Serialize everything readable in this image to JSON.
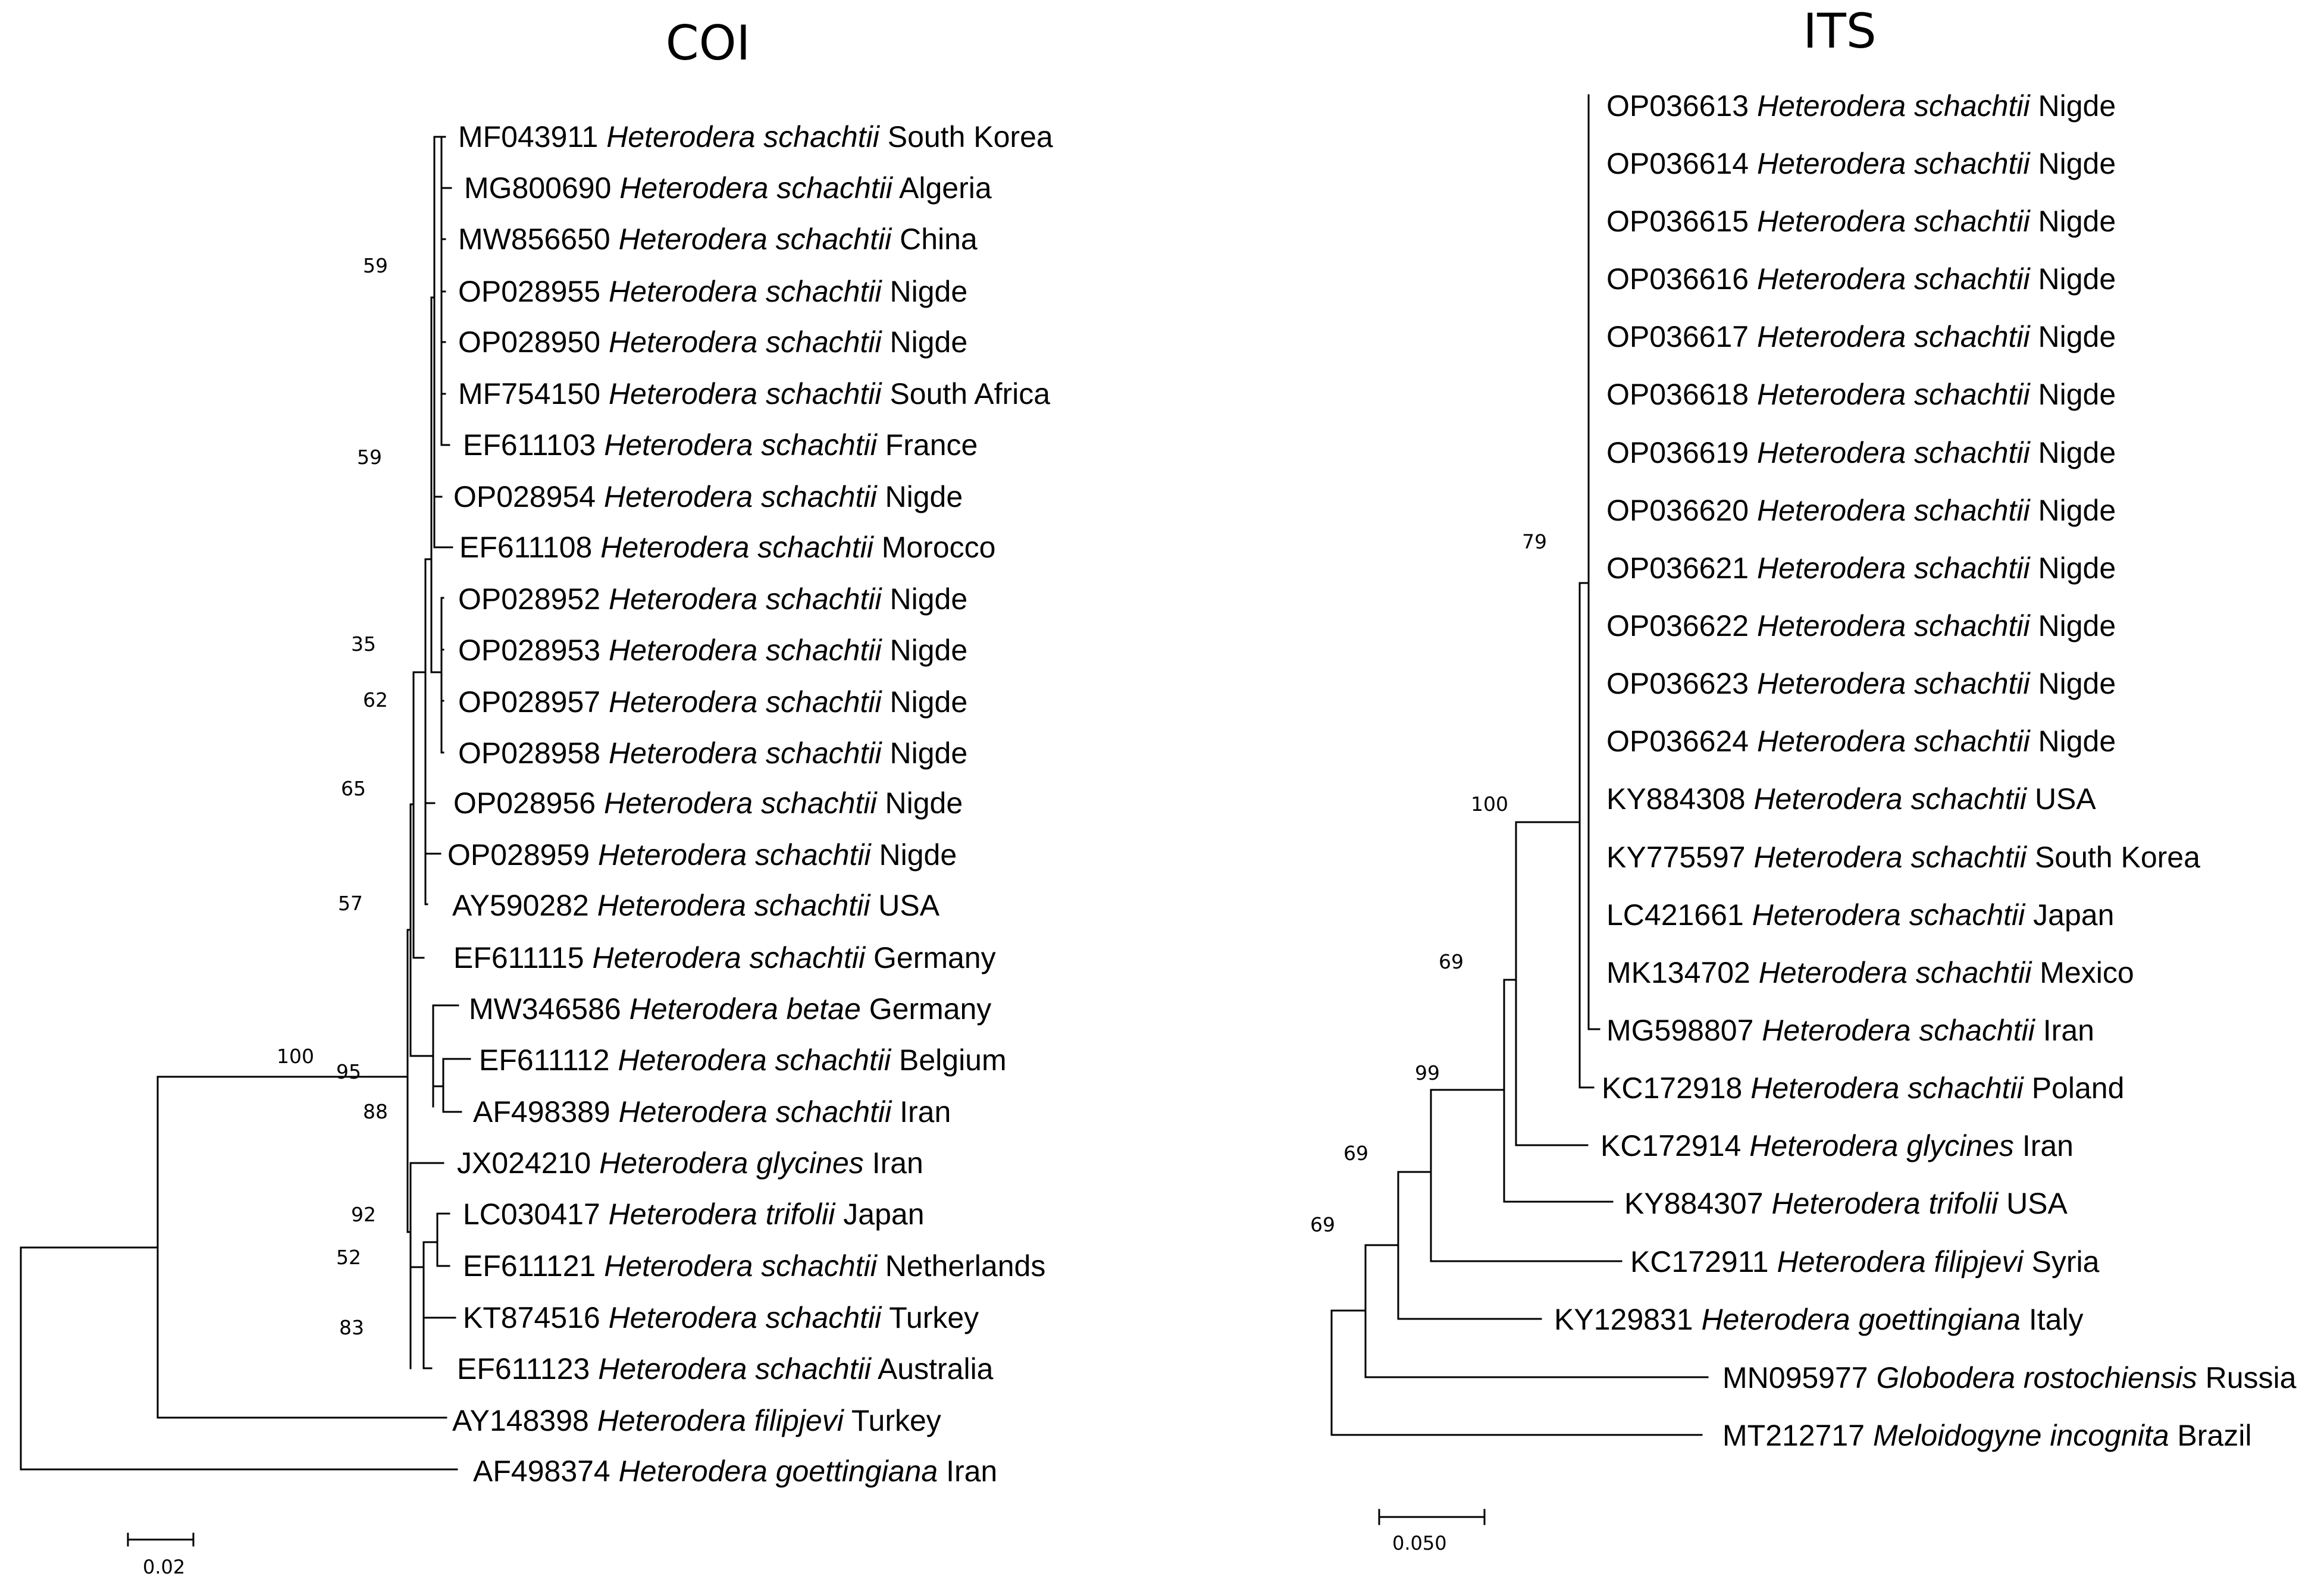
{
  "coi": {
    "title": "COI",
    "scale_label": "0.02",
    "leaves": [
      {
        "accession": "MF043911",
        "species": "Heterodera schachtii",
        "origin": "South Korea"
      },
      {
        "accession": "MG800690",
        "species": "Heterodera schachtii",
        "origin": "Algeria"
      },
      {
        "accession": "MW856650",
        "species": "Heterodera schachtii",
        "origin": "China"
      },
      {
        "accession": "OP028955",
        "species": "Heterodera schachtii",
        "origin": "Nigde"
      },
      {
        "accession": "OP028950",
        "species": "Heterodera schachtii",
        "origin": "Nigde"
      },
      {
        "accession": "MF754150",
        "species": "Heterodera schachtii",
        "origin": "South Africa"
      },
      {
        "accession": "EF611103",
        "species": "Heterodera schachtii",
        "origin": "France"
      },
      {
        "accession": "OP028954",
        "species": "Heterodera schachtii",
        "origin": "Nigde"
      },
      {
        "accession": "EF611108",
        "species": "Heterodera schachtii",
        "origin": "Morocco"
      },
      {
        "accession": "OP028952",
        "species": "Heterodera schachtii",
        "origin": "Nigde"
      },
      {
        "accession": "OP028953",
        "species": "Heterodera schachtii",
        "origin": "Nigde"
      },
      {
        "accession": "OP028957",
        "species": "Heterodera schachtii",
        "origin": "Nigde"
      },
      {
        "accession": "OP028958",
        "species": "Heterodera schachtii",
        "origin": "Nigde"
      },
      {
        "accession": "OP028956",
        "species": "Heterodera schachtii",
        "origin": "Nigde"
      },
      {
        "accession": "OP028959",
        "species": "Heterodera schachtii",
        "origin": "Nigde"
      },
      {
        "accession": "AY590282",
        "species": "Heterodera schachtii",
        "origin": "USA"
      },
      {
        "accession": "EF611115",
        "species": "Heterodera schachtii",
        "origin": "Germany"
      },
      {
        "accession": "MW346586",
        "species": "Heterodera betae",
        "origin": "Germany"
      },
      {
        "accession": "EF611112",
        "species": "Heterodera schachtii",
        "origin": "Belgium"
      },
      {
        "accession": "AF498389",
        "species": "Heterodera schachtii",
        "origin": "Iran"
      },
      {
        "accession": "JX024210",
        "species": "Heterodera glycines",
        "origin": "Iran"
      },
      {
        "accession": "LC030417",
        "species": "Heterodera trifolii",
        "origin": "Japan"
      },
      {
        "accession": "EF611121",
        "species": "Heterodera schachtii",
        "origin": "Netherlands"
      },
      {
        "accession": "KT874516",
        "species": "Heterodera schachtii",
        "origin": "Turkey"
      },
      {
        "accession": "EF611123",
        "species": "Heterodera schachtii",
        "origin": "Australia"
      },
      {
        "accession": "AY148398",
        "species": "Heterodera filipjevi",
        "origin": "Turkey"
      },
      {
        "accession": "AF498374",
        "species": "Heterodera goettingiana",
        "origin": "Iran"
      }
    ],
    "bootstrap": [
      "59",
      "59",
      "35",
      "62",
      "65",
      "57",
      "100",
      "95",
      "88",
      "92",
      "52",
      "83"
    ]
  },
  "its": {
    "title": "ITS",
    "scale_label": "0.050",
    "leaves": [
      {
        "accession": "OP036613",
        "species": "Heterodera schachtii",
        "origin": "Nigde"
      },
      {
        "accession": "OP036614",
        "species": "Heterodera schachtii",
        "origin": "Nigde"
      },
      {
        "accession": "OP036615",
        "species": "Heterodera schachtii",
        "origin": "Nigde"
      },
      {
        "accession": "OP036616",
        "species": "Heterodera schachtii",
        "origin": "Nigde"
      },
      {
        "accession": "OP036617",
        "species": "Heterodera schachtii",
        "origin": "Nigde"
      },
      {
        "accession": "OP036618",
        "species": "Heterodera schachtii",
        "origin": "Nigde"
      },
      {
        "accession": "OP036619",
        "species": "Heterodera schachtii",
        "origin": "Nigde"
      },
      {
        "accession": "OP036620",
        "species": "Heterodera schachtii",
        "origin": "Nigde"
      },
      {
        "accession": "OP036621",
        "species": "Heterodera schachtii",
        "origin": "Nigde"
      },
      {
        "accession": "OP036622",
        "species": "Heterodera schachtii",
        "origin": "Nigde"
      },
      {
        "accession": "OP036623",
        "species": "Heterodera schachtii",
        "origin": "Nigde"
      },
      {
        "accession": "OP036624",
        "species": "Heterodera schachtii",
        "origin": "Nigde"
      },
      {
        "accession": "KY884308",
        "species": "Heterodera schachtii",
        "origin": "USA"
      },
      {
        "accession": "KY775597",
        "species": "Heterodera schachtii",
        "origin": "South Korea"
      },
      {
        "accession": "LC421661",
        "species": "Heterodera schachtii",
        "origin": "Japan"
      },
      {
        "accession": "MK134702",
        "species": "Heterodera schachtii",
        "origin": "Mexico"
      },
      {
        "accession": "MG598807",
        "species": "Heterodera schachtii",
        "origin": "Iran"
      },
      {
        "accession": "KC172918",
        "species": "Heterodera schachtii",
        "origin": "Poland"
      },
      {
        "accession": "KC172914",
        "species": "Heterodera glycines",
        "origin": "Iran"
      },
      {
        "accession": "KY884307",
        "species": "Heterodera trifolii",
        "origin": "USA"
      },
      {
        "accession": "KC172911",
        "species": "Heterodera filipjevi",
        "origin": "Syria"
      },
      {
        "accession": "KY129831",
        "species": "Heterodera goettingiana",
        "origin": "Italy"
      },
      {
        "accession": "MN095977",
        "species": "Globodera rostochiensis",
        "origin": "Russia"
      },
      {
        "accession": "MT212717",
        "species": "Meloidogyne incognita",
        "origin": "Brazil"
      }
    ],
    "bootstrap": [
      "79",
      "100",
      "69",
      "99",
      "69",
      "69"
    ]
  }
}
